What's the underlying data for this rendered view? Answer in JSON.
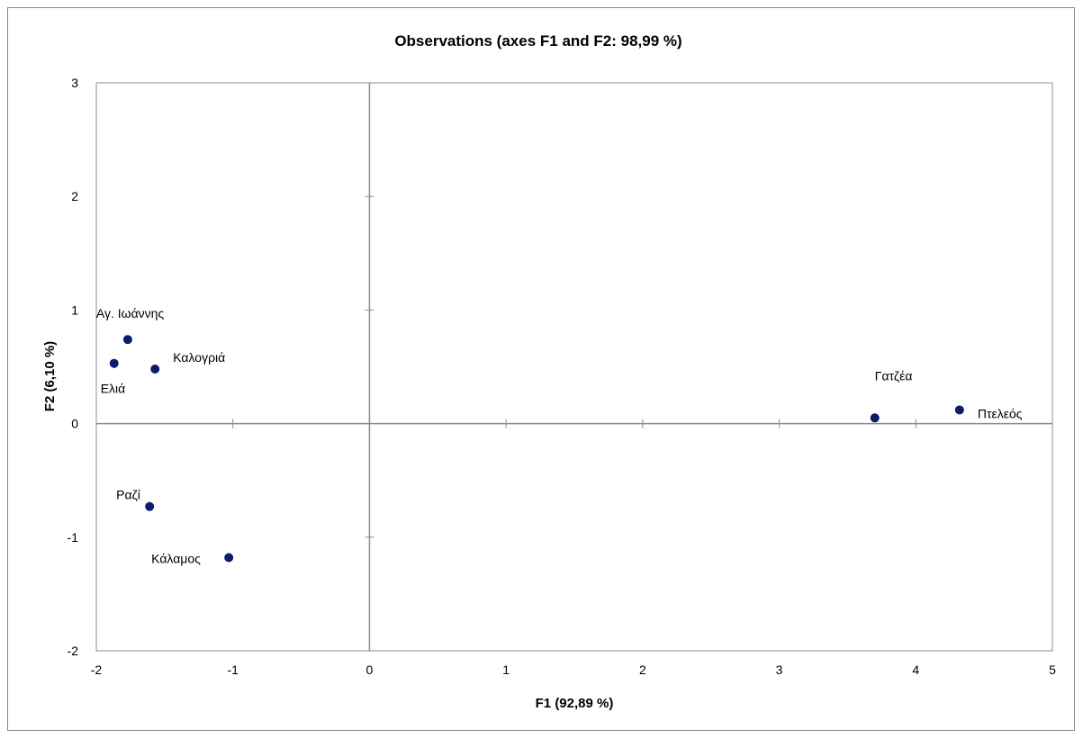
{
  "chart_data": {
    "type": "scatter",
    "title": "Observations (axes F1 and F2: 98,99 %)",
    "xlabel": "F1 (92,89 %)",
    "ylabel": "F2 (6,10 %)",
    "xlim": [
      -2,
      5
    ],
    "ylim": [
      -2,
      3
    ],
    "xticks": [
      -2,
      -1,
      0,
      1,
      2,
      3,
      4,
      5
    ],
    "yticks": [
      -2,
      -1,
      0,
      1,
      2,
      3
    ],
    "grid": false,
    "marker_color": "#0d1a6e",
    "axis_color": "#8c8c8c",
    "points": [
      {
        "label": "Αγ. Ιωάννης",
        "x": -1.77,
        "y": 0.74,
        "label_pos": "above"
      },
      {
        "label": "Καλογριά",
        "x": -1.57,
        "y": 0.48,
        "label_pos": "right-up"
      },
      {
        "label": "Ελιά",
        "x": -1.87,
        "y": 0.53,
        "label_pos": "below"
      },
      {
        "label": "Γατζέα",
        "x": 3.7,
        "y": 0.05,
        "label_pos": "above-far"
      },
      {
        "label": "Πτελεός",
        "x": 4.32,
        "y": 0.12,
        "label_pos": "right"
      },
      {
        "label": "Ραζί",
        "x": -1.61,
        "y": -0.73,
        "label_pos": "above-left"
      },
      {
        "label": "Κάλαμος",
        "x": -1.03,
        "y": -1.18,
        "label_pos": "left"
      }
    ]
  }
}
